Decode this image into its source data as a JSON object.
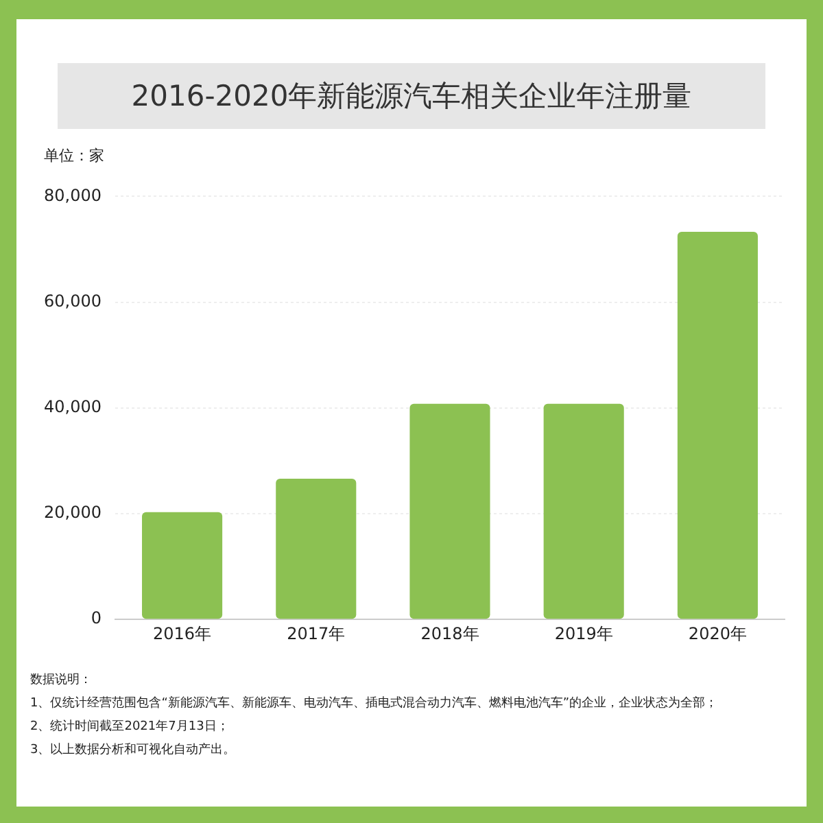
{
  "chart_data": {
    "type": "bar",
    "title": "2016-2020年新能源汽车相关企业年注册量",
    "ylabel": "单位：家",
    "categories": [
      "2016年",
      "2017年",
      "2018年",
      "2019年",
      "2020年"
    ],
    "values": [
      20300,
      26600,
      40800,
      40800,
      73300
    ],
    "color": "#8cc152",
    "ylim": [
      0,
      80000
    ],
    "yticks": [
      0,
      {
        "value": 20000,
        "label": "20,000"
      },
      {
        "value": 40000,
        "label": "40,000"
      },
      {
        "value": 60000,
        "label": "60,000"
      },
      {
        "value": 80000,
        "label": "80,000"
      }
    ],
    "grid": "y",
    "legend": false,
    "annotations": [
      "数据说明：",
      "1、仅统计经营范围包含“新能源汽车、新能源车、电动汽车、插电式混合动力汽车、燃料电池汽车”的企业，企业状态为全部；",
      "2、统计时间截至2021年7月13日；",
      "3、以上数据分析和可视化自动产出。"
    ]
  }
}
